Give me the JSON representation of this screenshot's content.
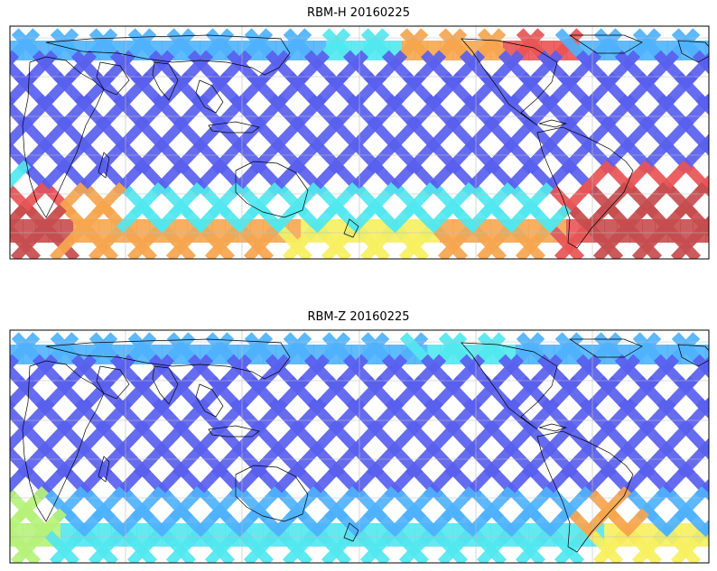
{
  "panels": [
    {
      "title": "RBM-H 20160225",
      "variant": "H"
    },
    {
      "title": "RBM-Z 20160225",
      "variant": "Z"
    }
  ],
  "colors": {
    "blue": "#5a60ee",
    "lightblue": "#4fb2ff",
    "cyan": "#52e8ef",
    "green": "#b6f27a",
    "yellow": "#f7f060",
    "orange": "#f7a64f",
    "red": "#e95455",
    "darkred": "#c64d4f",
    "coast": "#000000",
    "grid": "#bdbdbd"
  }
}
